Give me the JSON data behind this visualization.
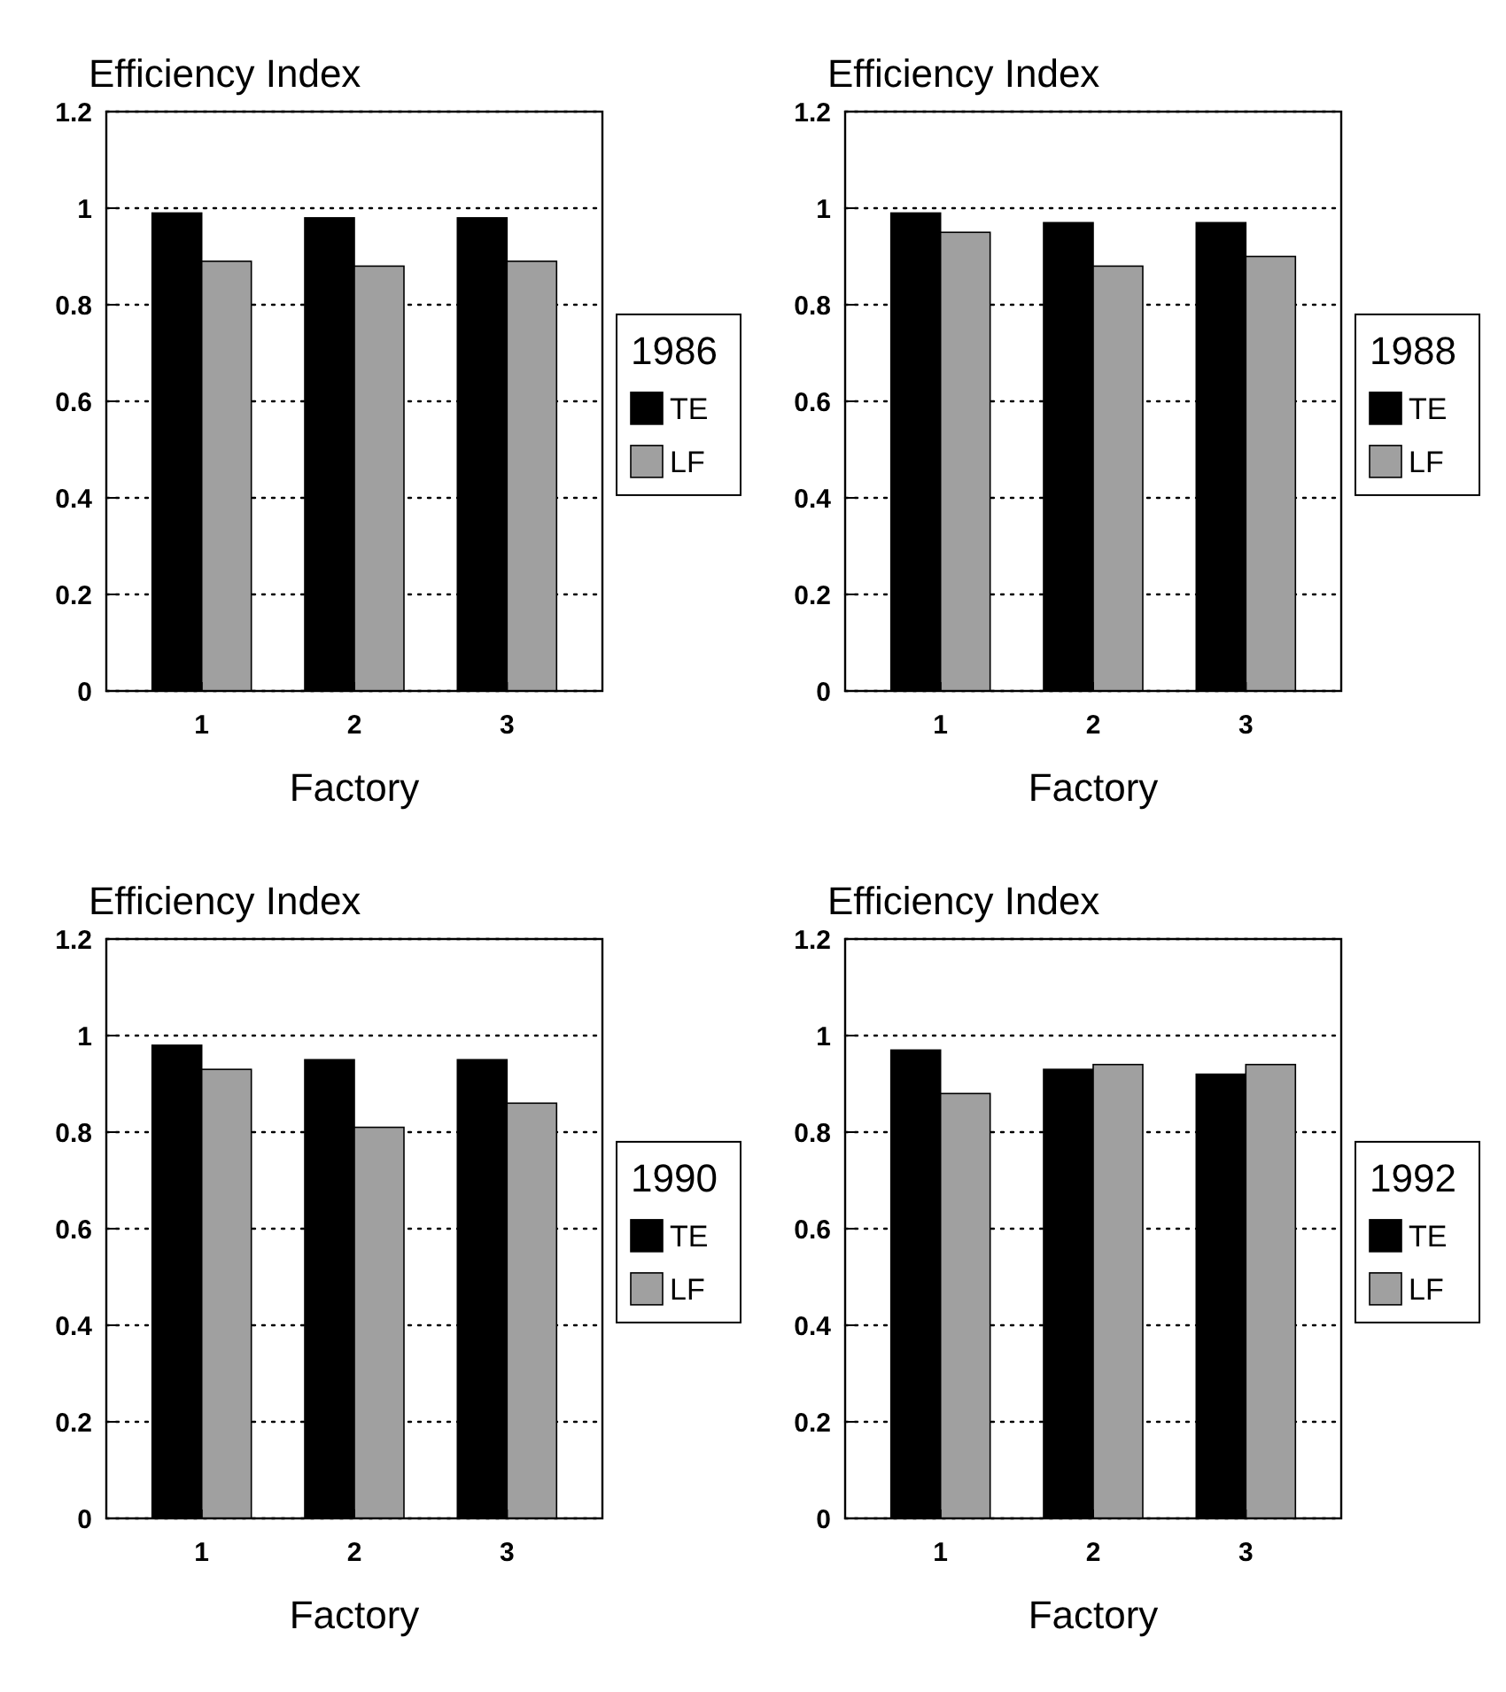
{
  "chart_data": [
    {
      "type": "bar",
      "title": "Efficiency Index",
      "xlabel": "Factory",
      "legend_title": "1986",
      "categories": [
        "1",
        "2",
        "3"
      ],
      "series": [
        {
          "name": "TE",
          "color": "#000000",
          "values": [
            0.99,
            0.98,
            0.98
          ]
        },
        {
          "name": "LF",
          "color": "#a0a0a0",
          "values": [
            0.89,
            0.88,
            0.89
          ]
        }
      ],
      "ylim": [
        0,
        1.2
      ],
      "yticks": [
        0,
        0.2,
        0.4,
        0.6,
        0.8,
        1,
        1.2
      ],
      "grid": "y",
      "line_style": "dotted",
      "legend": "right"
    },
    {
      "type": "bar",
      "title": "Efficiency Index",
      "xlabel": "Factory",
      "legend_title": "1988",
      "categories": [
        "1",
        "2",
        "3"
      ],
      "series": [
        {
          "name": "TE",
          "color": "#000000",
          "values": [
            0.99,
            0.97,
            0.97
          ]
        },
        {
          "name": "LF",
          "color": "#a0a0a0",
          "values": [
            0.95,
            0.88,
            0.9
          ]
        }
      ],
      "ylim": [
        0,
        1.2
      ],
      "yticks": [
        0,
        0.2,
        0.4,
        0.6,
        0.8,
        1,
        1.2
      ],
      "grid": "y",
      "line_style": "dotted",
      "legend": "right"
    },
    {
      "type": "bar",
      "title": "Efficiency Index",
      "xlabel": "Factory",
      "legend_title": "1990",
      "categories": [
        "1",
        "2",
        "3"
      ],
      "series": [
        {
          "name": "TE",
          "color": "#000000",
          "values": [
            0.98,
            0.95,
            0.95
          ]
        },
        {
          "name": "LF",
          "color": "#a0a0a0",
          "values": [
            0.93,
            0.81,
            0.86
          ]
        }
      ],
      "ylim": [
        0,
        1.2
      ],
      "yticks": [
        0,
        0.2,
        0.4,
        0.6,
        0.8,
        1,
        1.2
      ],
      "grid": "y",
      "line_style": "dotted",
      "legend": "right"
    },
    {
      "type": "bar",
      "title": "Efficiency Index",
      "xlabel": "Factory",
      "legend_title": "1992",
      "categories": [
        "1",
        "2",
        "3"
      ],
      "series": [
        {
          "name": "TE",
          "color": "#000000",
          "values": [
            0.97,
            0.93,
            0.92
          ]
        },
        {
          "name": "LF",
          "color": "#a0a0a0",
          "values": [
            0.88,
            0.94,
            0.94
          ]
        }
      ],
      "ylim": [
        0,
        1.2
      ],
      "yticks": [
        0,
        0.2,
        0.4,
        0.6,
        0.8,
        1,
        1.2
      ],
      "grid": "y",
      "line_style": "dotted",
      "legend": "right"
    }
  ]
}
